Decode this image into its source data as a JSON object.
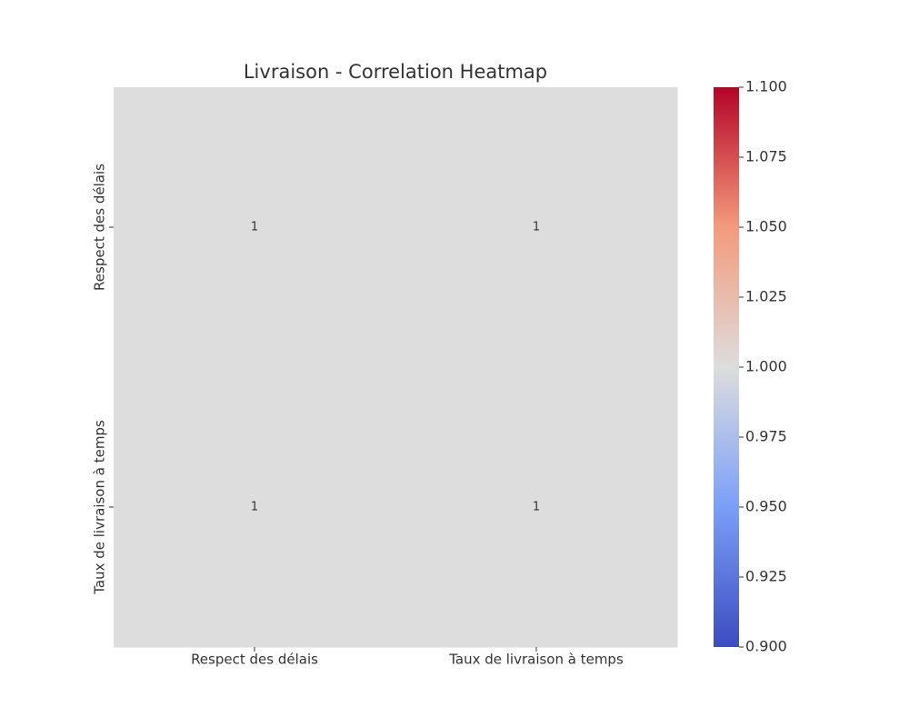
{
  "chart_data": {
    "type": "heatmap",
    "title": "Livraison - Correlation Heatmap",
    "x_categories": [
      "Respect des délais",
      "Taux de livraison à temps"
    ],
    "y_categories": [
      "Respect des délais",
      "Taux de livraison à temps"
    ],
    "values": [
      [
        1,
        1
      ],
      [
        1,
        1
      ]
    ],
    "colormap": "coolwarm",
    "clim": [
      0.9,
      1.1
    ],
    "cticks": [
      {
        "value": 0.9,
        "label": "0.900"
      },
      {
        "value": 0.925,
        "label": "0.925"
      },
      {
        "value": 0.95,
        "label": "0.950"
      },
      {
        "value": 0.975,
        "label": "0.975"
      },
      {
        "value": 1.0,
        "label": "1.000"
      },
      {
        "value": 1.025,
        "label": "1.025"
      },
      {
        "value": 1.05,
        "label": "1.050"
      },
      {
        "value": 1.075,
        "label": "1.075"
      },
      {
        "value": 1.1,
        "label": "1.100"
      }
    ]
  }
}
